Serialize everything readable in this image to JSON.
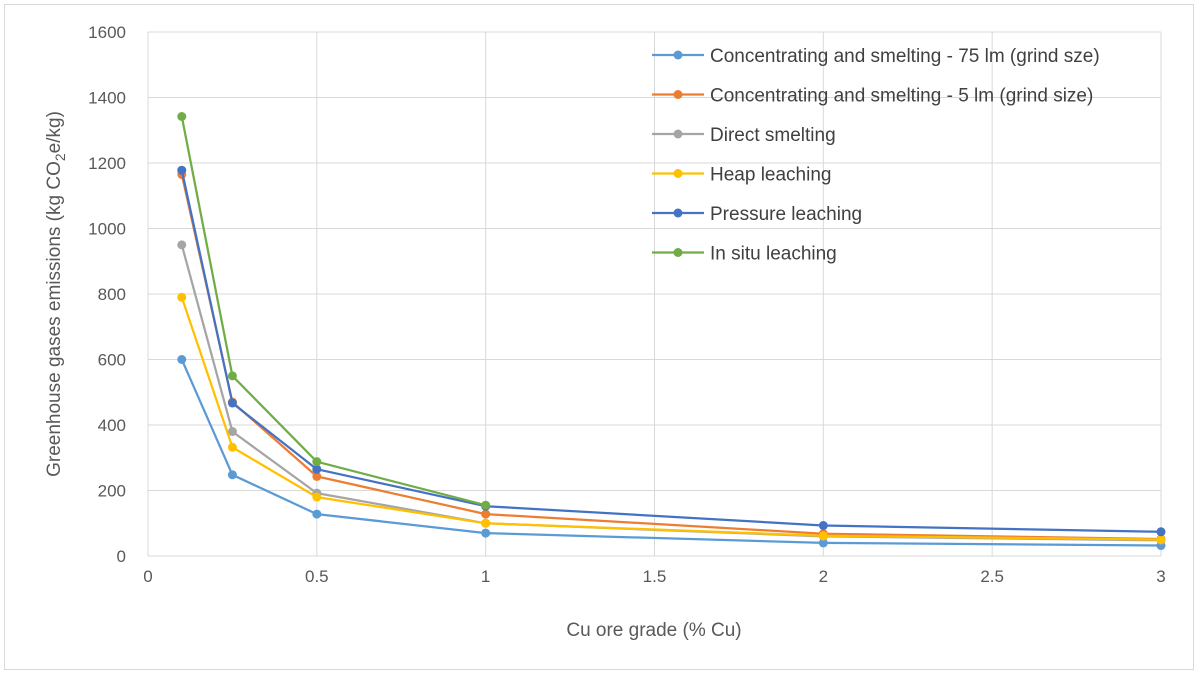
{
  "chart_data": {
    "type": "line",
    "title": "",
    "xlabel": "Cu ore grade (% Cu)",
    "ylabel": {
      "prefix": "Greenhouse gases emissions (kg CO",
      "sub": "2",
      "suffix": "e/kg)"
    },
    "xlim": [
      0,
      3
    ],
    "ylim": [
      0,
      1600
    ],
    "xticks": [
      0,
      0.5,
      1,
      1.5,
      2,
      2.5,
      3
    ],
    "xtick_labels": [
      "0",
      "0.5",
      "1",
      "1.5",
      "2",
      "2.5",
      "3"
    ],
    "yticks": [
      0,
      200,
      400,
      600,
      800,
      1000,
      1200,
      1400,
      1600
    ],
    "ytick_labels": [
      "0",
      "200",
      "400",
      "600",
      "800",
      "1000",
      "1200",
      "1400",
      "1600"
    ],
    "grid": true,
    "legend_position": "top-right",
    "x": [
      0.1,
      0.25,
      0.5,
      1,
      2,
      3
    ],
    "series": [
      {
        "name": "Concentrating and smelting - 75 lm (grind sze)",
        "color": "#5b9bd5",
        "values": [
          600,
          248,
          128,
          70,
          40,
          32
        ]
      },
      {
        "name": "Concentrating and smelting - 5 lm (grind size)",
        "color": "#ed7d31",
        "values": [
          1165,
          470,
          243,
          128,
          68,
          52
        ]
      },
      {
        "name": "Direct smelting",
        "color": "#a5a5a5",
        "values": [
          950,
          380,
          192,
          100,
          60,
          48
        ]
      },
      {
        "name": "Heap leaching",
        "color": "#ffc000",
        "values": [
          790,
          332,
          180,
          100,
          62,
          50
        ]
      },
      {
        "name": "Pressure leaching",
        "color": "#4472c4",
        "values": [
          1178,
          467,
          265,
          152,
          93,
          74
        ]
      },
      {
        "name": "In situ leaching",
        "color": "#70ad47",
        "values": [
          1342,
          550,
          288,
          155,
          null,
          null
        ]
      }
    ]
  }
}
